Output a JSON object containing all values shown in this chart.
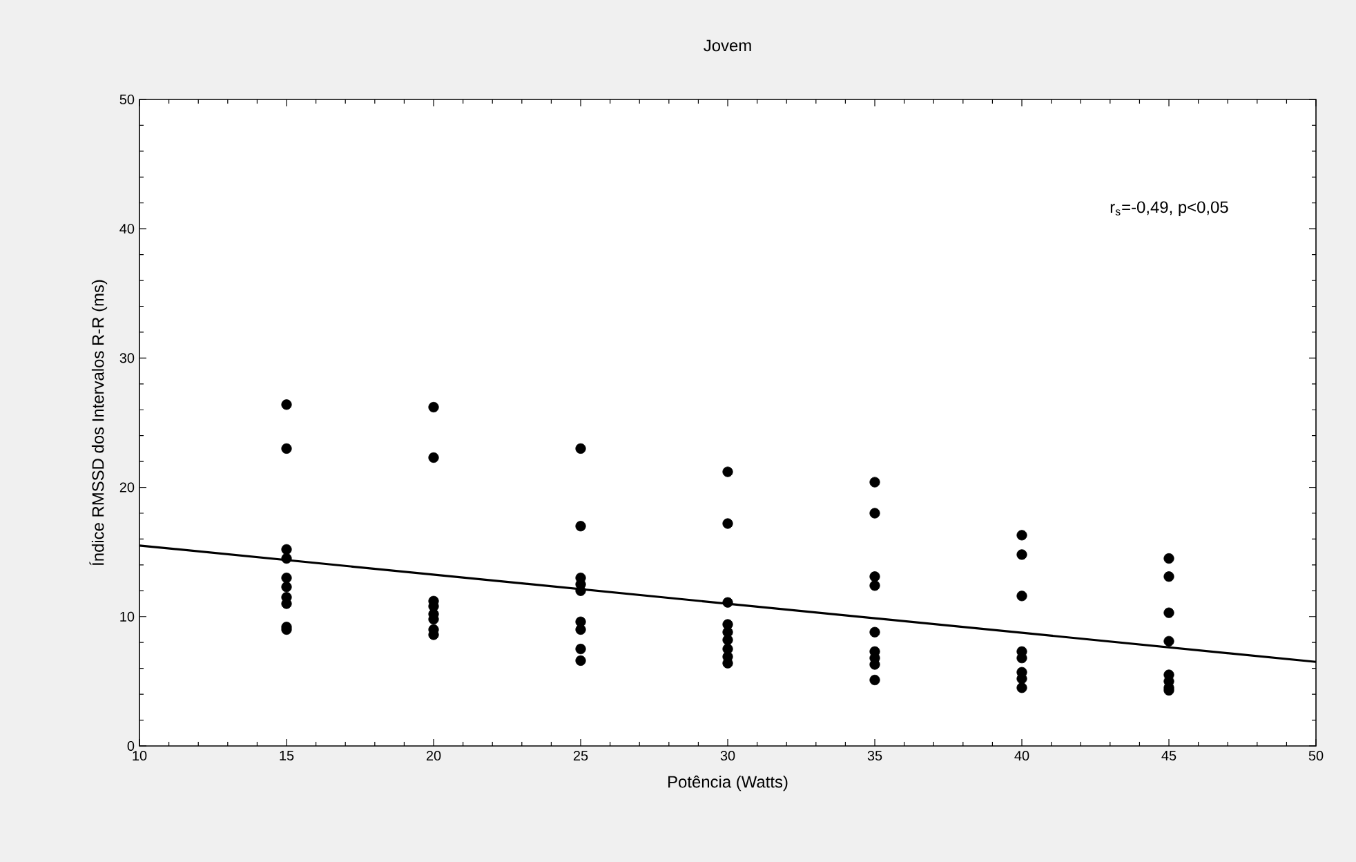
{
  "chart_data": {
    "type": "scatter",
    "title": "Jovem",
    "xlabel": "Potência (Watts)",
    "ylabel": "Índice RMSSD dos Intervalos R-R (ms)",
    "annotations": [
      "r$_{s}$=-0,49, p<0,05"
    ],
    "xlim": [
      10,
      50
    ],
    "ylim": [
      0,
      50
    ],
    "xticks": [
      10,
      15,
      20,
      25,
      30,
      35,
      40,
      45,
      50
    ],
    "yticks": [
      0,
      10,
      20,
      30,
      40,
      50
    ],
    "grid": false,
    "series": [
      {
        "color": "#000000",
        "marker": "circle",
        "x": [
          15,
          15,
          15,
          15,
          15,
          15,
          15,
          15,
          15,
          15,
          20,
          20,
          20,
          20,
          20,
          20,
          20,
          20,
          25,
          25,
          25,
          25,
          25,
          25,
          25,
          25,
          25,
          30,
          30,
          30,
          30,
          30,
          30,
          30,
          30,
          30,
          35,
          35,
          35,
          35,
          35,
          35,
          35,
          35,
          35,
          40,
          40,
          40,
          40,
          40,
          40,
          40,
          40,
          45,
          45,
          45,
          45,
          45,
          45,
          45,
          45
        ],
        "values": [
          26.4,
          23.0,
          15.2,
          14.5,
          13.0,
          12.3,
          11.5,
          11.0,
          9.2,
          9.0,
          26.2,
          22.3,
          11.2,
          10.8,
          10.2,
          9.8,
          9.0,
          8.6,
          23.0,
          17.0,
          13.0,
          12.5,
          12.0,
          9.6,
          9.0,
          7.5,
          6.6,
          21.2,
          17.2,
          11.1,
          9.4,
          8.8,
          8.2,
          7.5,
          6.9,
          6.4,
          20.4,
          18.0,
          13.1,
          12.4,
          8.8,
          7.3,
          6.8,
          6.3,
          5.1,
          16.3,
          14.8,
          11.6,
          7.3,
          6.8,
          5.7,
          5.2,
          4.5,
          14.5,
          13.1,
          10.3,
          8.1,
          5.5,
          5.0,
          4.5,
          4.3
        ]
      },
      {
        "type": "line",
        "marker": "none",
        "color": "#000000",
        "x": [
          10,
          50
        ],
        "values": [
          15.5,
          6.5
        ]
      }
    ]
  }
}
